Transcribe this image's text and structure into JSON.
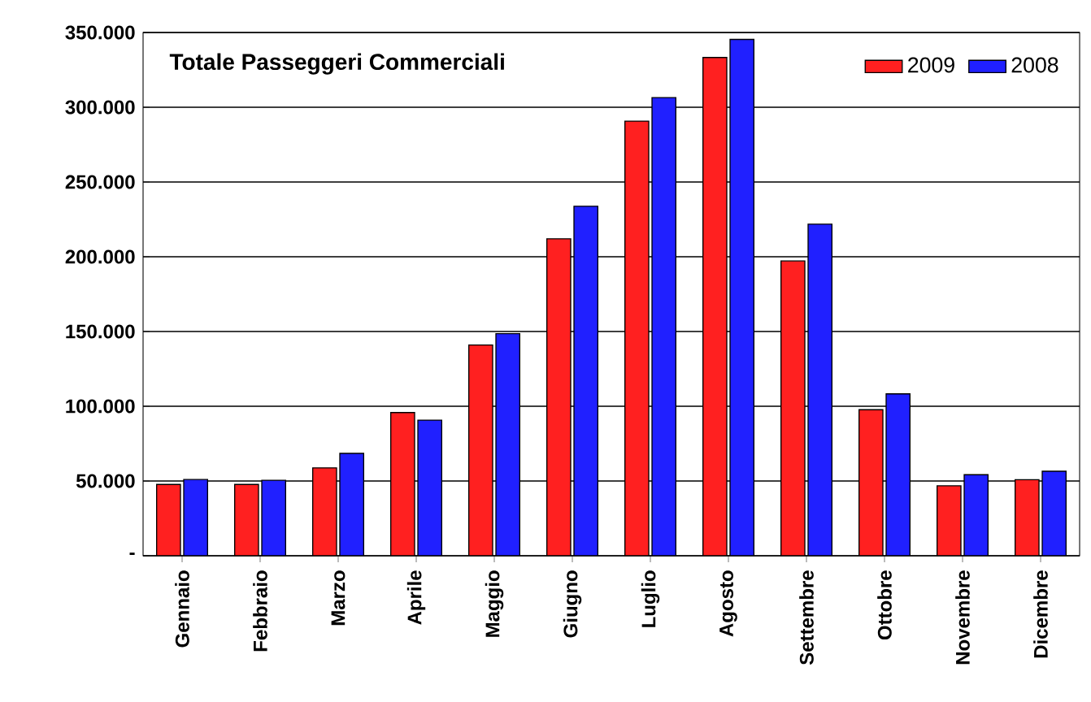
{
  "chart_data": {
    "type": "bar",
    "title": "Totale Passeggeri Commerciali",
    "categories": [
      "Gennaio",
      "Febbraio",
      "Marzo",
      "Aprile",
      "Maggio",
      "Giugno",
      "Luglio",
      "Agosto",
      "Settembre",
      "Ottobre",
      "Novembre",
      "Dicembre"
    ],
    "series": [
      {
        "name": "2009",
        "color": "#ff2020",
        "values": [
          47700,
          47700,
          58800,
          95800,
          141000,
          212000,
          290700,
          333300,
          197200,
          97700,
          46800,
          50900
        ]
      },
      {
        "name": "2008",
        "color": "#2020ff",
        "values": [
          51000,
          50500,
          68500,
          90700,
          148600,
          233800,
          306500,
          345400,
          221800,
          108300,
          54200,
          56500
        ]
      }
    ],
    "ylim": [
      0,
      350000
    ],
    "yticks": [
      {
        "value": 0,
        "label": "-"
      },
      {
        "value": 50000,
        "label": "50.000"
      },
      {
        "value": 100000,
        "label": "100.000"
      },
      {
        "value": 150000,
        "label": "150.000"
      },
      {
        "value": 200000,
        "label": "200.000"
      },
      {
        "value": 250000,
        "label": "250.000"
      },
      {
        "value": 300000,
        "label": "300.000"
      },
      {
        "value": 350000,
        "label": "350.000"
      }
    ],
    "grid": "y",
    "legend": "top right"
  }
}
